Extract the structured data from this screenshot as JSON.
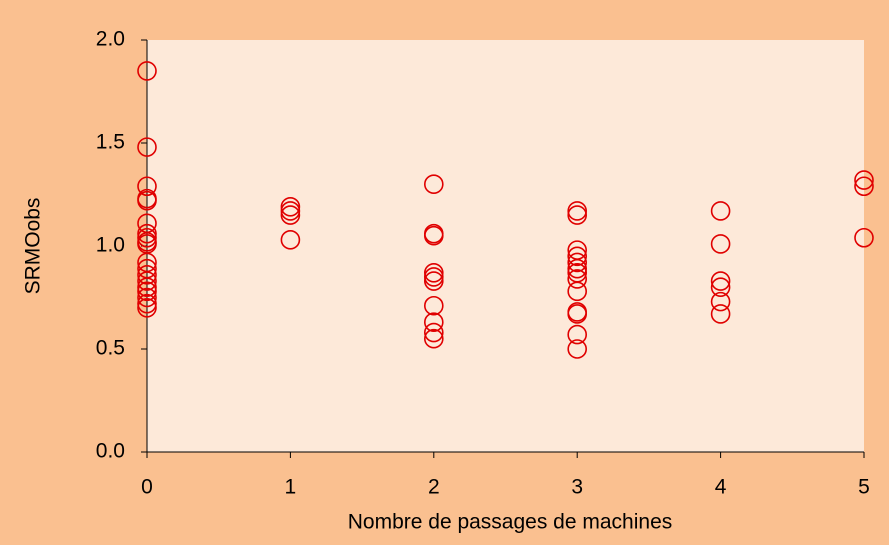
{
  "chart_data": {
    "type": "scatter",
    "x_label": "Nombre de passages de machines",
    "y_label": "SRMOobs",
    "series": [
      {
        "color": "#e00000",
        "x": [
          0,
          0,
          0,
          0,
          0,
          0,
          0,
          0,
          0,
          0,
          0,
          0,
          0,
          0,
          0,
          0,
          0,
          0,
          0,
          1,
          1,
          1,
          1,
          2,
          2,
          2,
          2,
          2,
          2,
          2,
          2,
          2,
          2,
          3,
          3,
          3,
          3,
          3,
          3,
          3,
          3,
          3,
          3,
          3,
          3,
          3,
          4,
          4,
          4,
          4,
          4,
          4,
          5,
          5,
          5
        ],
        "values": [
          1.85,
          1.48,
          1.29,
          1.23,
          1.22,
          1.11,
          1.06,
          1.04,
          1.02,
          1.01,
          0.92,
          0.89,
          0.86,
          0.83,
          0.8,
          0.78,
          0.75,
          0.72,
          0.7,
          1.19,
          1.17,
          1.15,
          1.03,
          1.3,
          1.06,
          1.05,
          0.87,
          0.85,
          0.83,
          0.71,
          0.63,
          0.58,
          0.55,
          1.17,
          1.15,
          0.98,
          0.95,
          0.92,
          0.89,
          0.87,
          0.84,
          0.78,
          0.68,
          0.67,
          0.57,
          0.5,
          1.17,
          1.01,
          0.83,
          0.8,
          0.73,
          0.67,
          1.32,
          1.29,
          1.04
        ]
      }
    ],
    "xlim": [
      0,
      5
    ],
    "xticks": [
      0,
      1,
      2,
      3,
      4,
      5
    ],
    "ylim": [
      0,
      2
    ],
    "yticks": [
      {
        "value": 0,
        "label": "0.0"
      },
      {
        "value": 0.5,
        "label": "0.5"
      },
      {
        "value": 1,
        "label": "1.0"
      },
      {
        "value": 1.5,
        "label": "1.5"
      },
      {
        "value": 2,
        "label": "2.0"
      }
    ],
    "grid": false
  }
}
